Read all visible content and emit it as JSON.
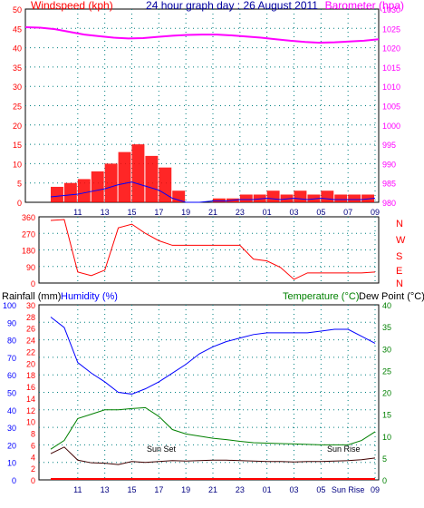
{
  "header": {
    "left_title": "Windspeed (kph)",
    "center_title": "24 hour graph day : 26 August 2011",
    "right_title": "Barometer (hpa)"
  },
  "labels": {
    "rainfall": "Rainfall (mm)",
    "humidity": "Humidity (%)",
    "temperature": "Temperature (°C)",
    "dewpoint": "Dew Point (°C)",
    "sun_set": "Sun Set",
    "sun_rise": "Sun Rise",
    "sun_rise_axis": "Sun Rise"
  },
  "colors": {
    "windspeed": "#ff0000",
    "gust_avg": "#0000ff",
    "wind_green": "#008000",
    "barometer": "#ff00ff",
    "direction": "#ff0000",
    "humidity": "#0000ff",
    "temperature": "#008000",
    "dewpoint": "#400000",
    "rainfall": "#ff0000",
    "grid": "#008080",
    "axis": "#000000"
  },
  "chart_data": [
    {
      "type": "bar",
      "title": "Windspeed (kph)",
      "ylim": [
        0,
        50
      ],
      "y_ticks": [
        0,
        5,
        10,
        15,
        20,
        25,
        30,
        35,
        40,
        45,
        50
      ],
      "x_ticks": [
        "11",
        "13",
        "15",
        "17",
        "19",
        "21",
        "23",
        "01",
        "03",
        "05",
        "07",
        "09"
      ],
      "series": [
        {
          "name": "Windspeed (kph)",
          "x": [
            "09",
            "10",
            "11",
            "12",
            "13",
            "14",
            "15",
            "16",
            "17",
            "18",
            "19",
            "20",
            "21",
            "22",
            "23",
            "00",
            "01",
            "02",
            "03",
            "04",
            "05",
            "06",
            "07",
            "08",
            "09"
          ],
          "values": [
            4,
            5,
            6,
            8,
            10,
            13,
            15,
            12,
            9,
            3,
            0,
            0,
            1,
            1,
            2,
            2,
            3,
            2,
            3,
            2,
            3,
            2,
            2,
            2,
            3
          ]
        },
        {
          "name": "Barometer (hpa)",
          "axis": "right",
          "ylim": [
            980,
            1030
          ],
          "y_ticks": [
            980,
            985,
            990,
            995,
            1000,
            1005,
            1010,
            1015,
            1020,
            1025,
            1030
          ],
          "x": [
            "09",
            "10",
            "11",
            "12",
            "13",
            "14",
            "15",
            "16",
            "17",
            "18",
            "19",
            "20",
            "21",
            "22",
            "23",
            "00",
            "01",
            "02",
            "03",
            "04",
            "05",
            "06",
            "07",
            "08",
            "09"
          ],
          "values": [
            1025.3,
            1025.2,
            1024.8,
            1024.1,
            1023.4,
            1023.0,
            1022.6,
            1022.4,
            1022.5,
            1022.8,
            1023.1,
            1023.3,
            1023.4,
            1023.4,
            1023.2,
            1022.9,
            1022.6,
            1022.2,
            1021.8,
            1021.5,
            1021.3,
            1021.4,
            1021.6,
            1021.8,
            1022.2
          ]
        }
      ]
    },
    {
      "type": "line",
      "title": "Wind Direction",
      "ylim": [
        0,
        360
      ],
      "y_ticks": [
        0,
        90,
        180,
        270,
        360
      ],
      "direction_labels": [
        "N",
        "W",
        "S",
        "E",
        "N"
      ],
      "x": [
        "09",
        "10",
        "11",
        "12",
        "13",
        "14",
        "15",
        "16",
        "17",
        "18",
        "19",
        "20",
        "21",
        "22",
        "23",
        "00",
        "01",
        "02",
        "03",
        "04",
        "05",
        "06",
        "07",
        "08",
        "09"
      ],
      "values": [
        340,
        345,
        60,
        40,
        70,
        300,
        320,
        270,
        230,
        205,
        205,
        205,
        205,
        205,
        205,
        130,
        120,
        85,
        20,
        55,
        55,
        55,
        55,
        55,
        60
      ]
    },
    {
      "type": "line",
      "title": "Rainfall / Humidity / Temperature / Dew Point",
      "x_ticks": [
        "11",
        "13",
        "15",
        "17",
        "19",
        "21",
        "23",
        "01",
        "03",
        "05",
        "Sun Rise",
        "09"
      ],
      "series": [
        {
          "name": "Humidity (%)",
          "axis": "left_inner",
          "ylim": [
            0,
            100
          ],
          "y_ticks": [
            0,
            10,
            20,
            30,
            40,
            50,
            60,
            70,
            80,
            90,
            100
          ],
          "x": [
            "09",
            "10",
            "11",
            "12",
            "13",
            "14",
            "15",
            "16",
            "17",
            "18",
            "19",
            "20",
            "21",
            "22",
            "23",
            "00",
            "01",
            "02",
            "03",
            "04",
            "05",
            "06",
            "07",
            "08",
            "09"
          ],
          "values": [
            93,
            87,
            67,
            61,
            56,
            50,
            49,
            52,
            56,
            61,
            66,
            72,
            76,
            79,
            81,
            83,
            84,
            84,
            84,
            84,
            85,
            86,
            86,
            82,
            78
          ]
        },
        {
          "name": "Temperature (°C)",
          "axis": "right",
          "ylim": [
            0,
            40
          ],
          "y_ticks": [
            0,
            5,
            10,
            15,
            20,
            25,
            30,
            35,
            40
          ],
          "x": [
            "09",
            "10",
            "11",
            "12",
            "13",
            "14",
            "15",
            "16",
            "17",
            "18",
            "19",
            "20",
            "21",
            "22",
            "23",
            "00",
            "01",
            "02",
            "03",
            "04",
            "05",
            "06",
            "07",
            "08",
            "09"
          ],
          "values": [
            7,
            9,
            14,
            15,
            16,
            16,
            16.3,
            16.5,
            14.5,
            11.5,
            10.5,
            10,
            9.5,
            9.2,
            8.8,
            8.5,
            8.4,
            8.3,
            8.2,
            8.1,
            8.0,
            8.0,
            8.0,
            9.0,
            11
          ]
        },
        {
          "name": "Dew Point (°C)",
          "axis": "right",
          "ylim": [
            0,
            40
          ],
          "x": [
            "09",
            "10",
            "11",
            "12",
            "13",
            "14",
            "15",
            "16",
            "17",
            "18",
            "19",
            "20",
            "21",
            "22",
            "23",
            "00",
            "01",
            "02",
            "03",
            "04",
            "05",
            "06",
            "07",
            "08",
            "09"
          ],
          "values": [
            6,
            7.5,
            4.5,
            3.9,
            3.8,
            3.5,
            4.2,
            4.0,
            4.2,
            4.4,
            4.3,
            4.4,
            4.5,
            4.5,
            4.4,
            4.3,
            4.2,
            4.2,
            4.1,
            4.2,
            4.2,
            4.3,
            4.4,
            4.6,
            5.0
          ]
        },
        {
          "name": "Rainfall (mm)",
          "axis": "left_outer",
          "ylim": [
            0,
            30
          ],
          "y_ticks": [
            0,
            2,
            4,
            6,
            8,
            10,
            12,
            14,
            16,
            18,
            20,
            22,
            24,
            26,
            28,
            30
          ],
          "x": [
            "09",
            "10",
            "11",
            "12",
            "13",
            "14",
            "15",
            "16",
            "17",
            "18",
            "19",
            "20",
            "21",
            "22",
            "23",
            "00",
            "01",
            "02",
            "03",
            "04",
            "05",
            "06",
            "07",
            "08",
            "09"
          ],
          "values": [
            0,
            0,
            0,
            0,
            0,
            0,
            0,
            0,
            0,
            0,
            0,
            0,
            0,
            0,
            0,
            0,
            0,
            0,
            0,
            0,
            0,
            0,
            0,
            0,
            0
          ]
        }
      ]
    }
  ]
}
